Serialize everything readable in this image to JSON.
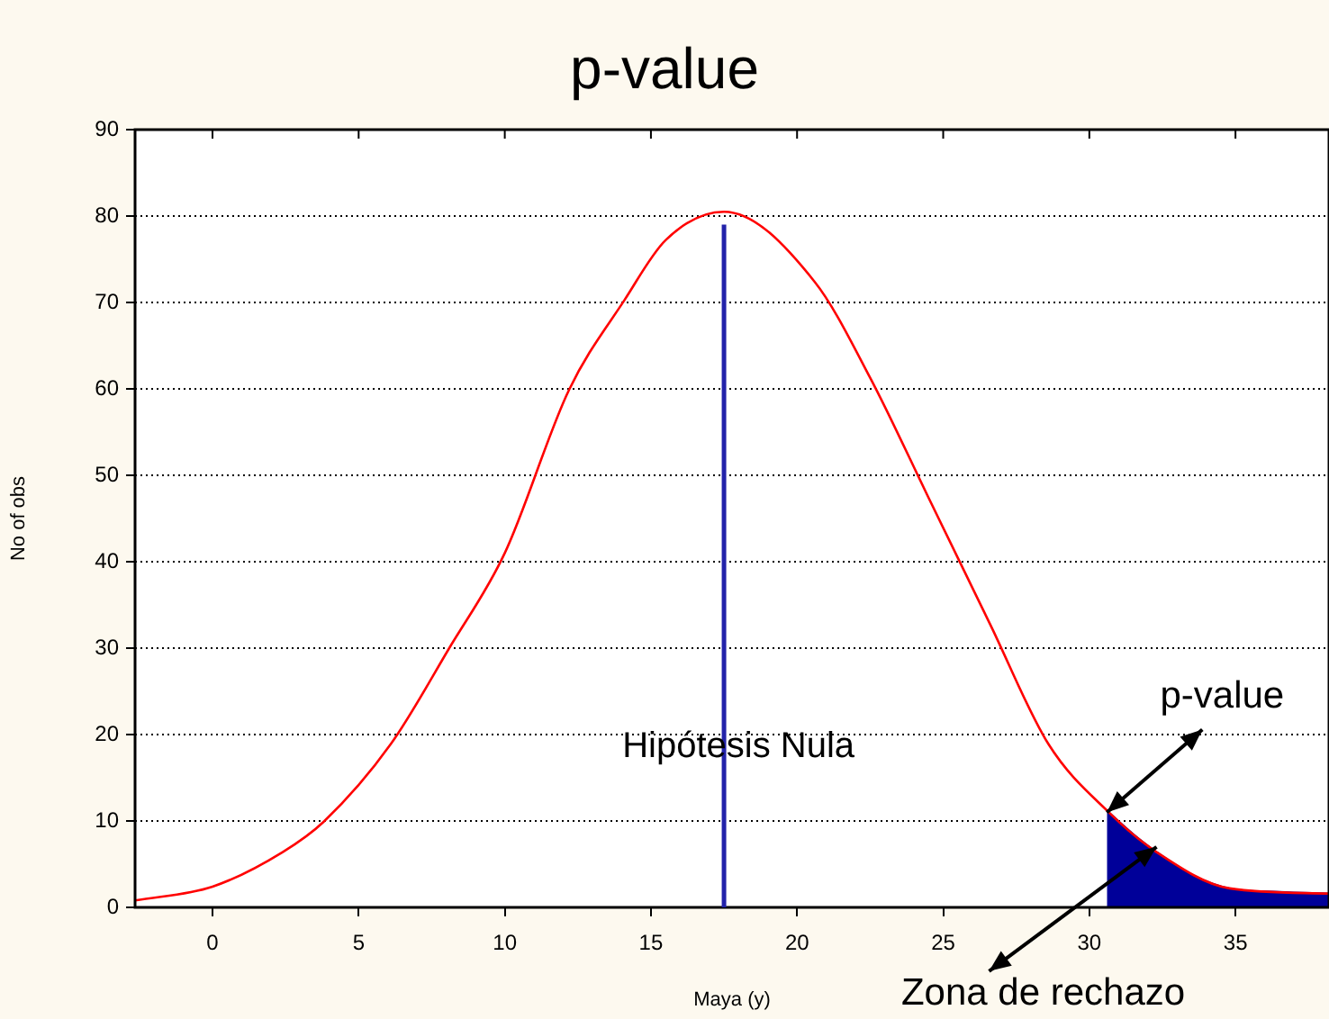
{
  "chart_data": {
    "type": "line",
    "title": "p-value",
    "xlabel": "Maya (y)",
    "ylabel": "No of obs",
    "xlim": [
      -2.65,
      38.2
    ],
    "xticks": [
      0,
      5,
      10,
      15,
      20,
      25,
      30,
      35
    ],
    "ylim": [
      0,
      90
    ],
    "yticks": [
      0,
      10,
      20,
      30,
      40,
      50,
      60,
      70,
      80,
      90
    ],
    "grid": "y",
    "legend": false,
    "marker": "none",
    "series": [
      {
        "type": "line",
        "color": "#ff0000",
        "x": [
          -2.65,
          0,
          2.4,
          3.8,
          6.1,
          8.1,
          10,
          12.2,
          14.1,
          15.5,
          17.5,
          20.6,
          22.5,
          24.5,
          26.6,
          28.6,
          30.7,
          32.3,
          34.8,
          38.2
        ],
        "values": [
          0.8,
          2.4,
          6.4,
          9.9,
          18.9,
          30,
          41,
          59.9,
          70.3,
          77.2,
          80.5,
          72.4,
          61.3,
          47.4,
          32.8,
          18.9,
          10.9,
          6.4,
          2.2,
          1.6
        ]
      },
      {
        "type": "area",
        "color": "#000099",
        "x": [
          30.6,
          31.5,
          32.3,
          33.5,
          34.8,
          36.5,
          38.2
        ],
        "values": [
          11.2,
          8.5,
          6.4,
          3.8,
          2.2,
          1.8,
          1.6
        ]
      }
    ],
    "ref_lines": [
      {
        "axis": "x",
        "value": 17.5,
        "label": "Hipótesis Nula",
        "color": "#2222aa"
      }
    ],
    "annotations": [
      {
        "text": "p-value",
        "x": 30.6,
        "y": 11
      },
      {
        "text": "Zona de rechazo",
        "x": 32.3,
        "y": 7
      }
    ]
  }
}
